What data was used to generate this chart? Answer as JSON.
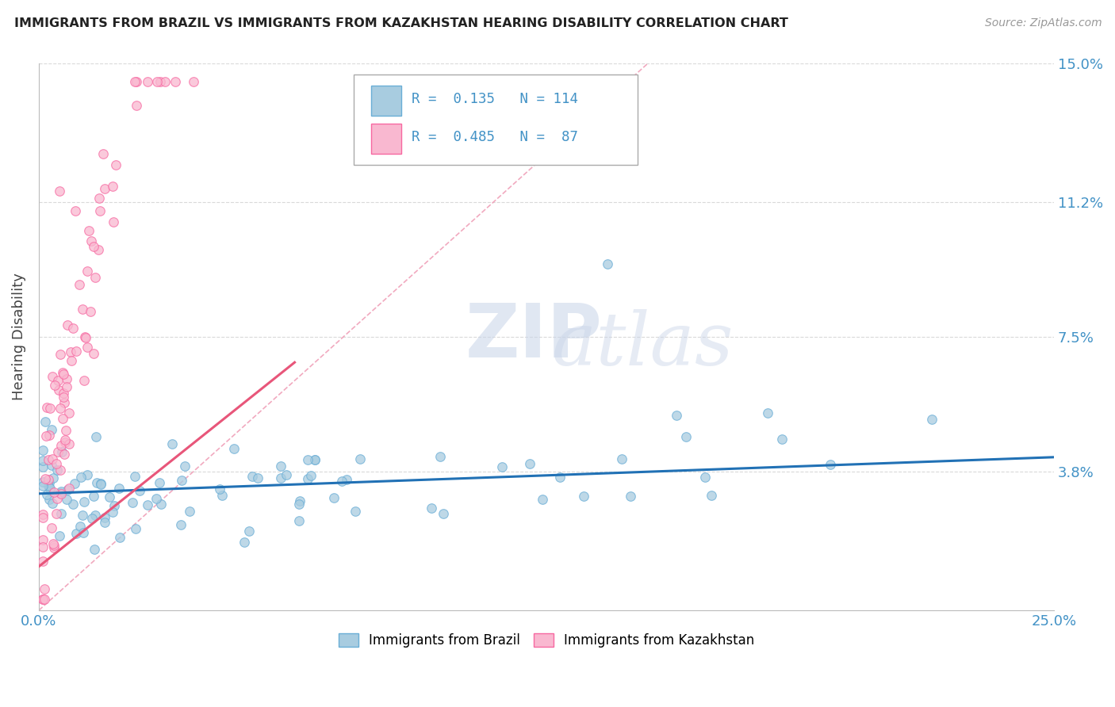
{
  "title": "IMMIGRANTS FROM BRAZIL VS IMMIGRANTS FROM KAZAKHSTAN HEARING DISABILITY CORRELATION CHART",
  "source": "Source: ZipAtlas.com",
  "ylabel": "Hearing Disability",
  "xlabel": "",
  "xlim": [
    0.0,
    0.25
  ],
  "ylim": [
    0.0,
    0.15
  ],
  "xtick_labels": [
    "0.0%",
    "25.0%"
  ],
  "ytick_positions": [
    0.038,
    0.075,
    0.112,
    0.15
  ],
  "ytick_labels": [
    "3.8%",
    "7.5%",
    "11.2%",
    "15.0%"
  ],
  "brazil_color": "#a8cce0",
  "brazil_color_edge": "#6aaed6",
  "kazakhstan_color": "#f9b8d0",
  "kazakhstan_color_edge": "#f768a1",
  "brazil_R": 0.135,
  "brazil_N": 114,
  "kazakhstan_R": 0.485,
  "kazakhstan_N": 87,
  "legend_brazil_label": "Immigrants from Brazil",
  "legend_kazakhstan_label": "Immigrants from Kazakhstan",
  "watermark_zip": "ZIP",
  "watermark_atlas": "atlas",
  "brazil_trend_color": "#2171b5",
  "kazakhstan_trend_color": "#e8567a",
  "diag_color": "#f0a0b8",
  "grid_color": "#d0d0d0",
  "title_color": "#222222",
  "tick_label_color": "#4292c6",
  "legend_R_color": "#4292c6",
  "legend_N_color": "#4292c6"
}
